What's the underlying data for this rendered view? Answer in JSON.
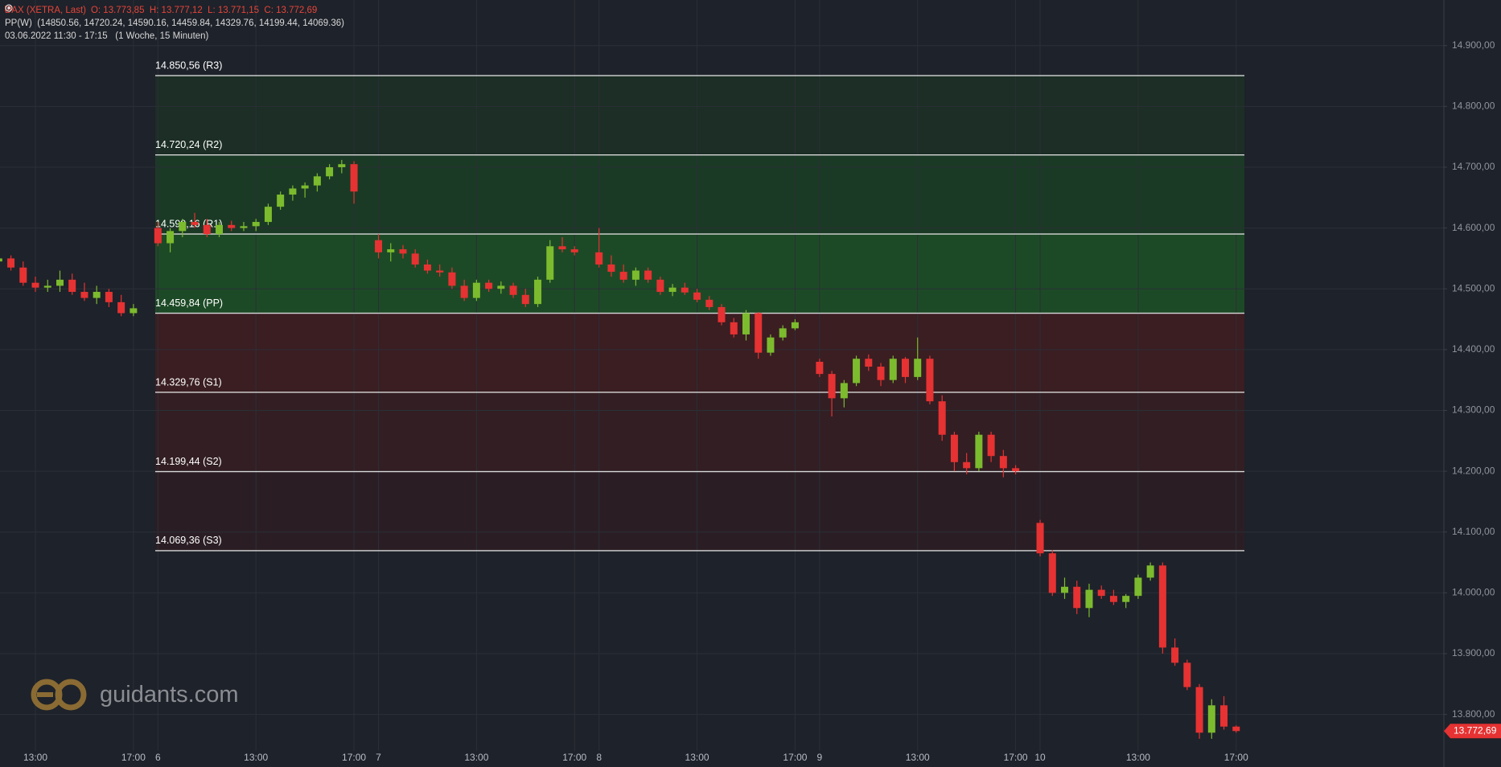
{
  "header": {
    "ohlc": "O: 13.773,85  H: 13.777,12  L: 13.771,15  C: 13.772,69",
    "indicator": "PP(W)  (14850.56, 14720.24, 14590.16, 14459.84, 14329.76, 14199.44, 14069.36)",
    "range": "03.06.2022 11:30 - 17:15   (1 Woche, 15 Minuten)"
  },
  "logo": "guidants.com",
  "chart_data": {
    "type": "candlestick",
    "categories": [
      null,
      null,
      null,
      "13:00",
      null,
      null,
      null,
      null,
      null,
      null,
      null,
      "17:00",
      null,
      "6",
      null,
      null,
      null,
      null,
      null,
      null,
      null,
      "13:00",
      null,
      null,
      null,
      null,
      null,
      null,
      null,
      "17:00",
      null,
      "7",
      null,
      null,
      null,
      null,
      null,
      null,
      null,
      "13:00",
      null,
      null,
      null,
      null,
      null,
      null,
      null,
      "17:00",
      null,
      "8",
      null,
      null,
      null,
      null,
      null,
      null,
      null,
      "13:00",
      null,
      null,
      null,
      null,
      null,
      null,
      null,
      "17:00",
      null,
      "9",
      null,
      null,
      null,
      null,
      null,
      null,
      null,
      "13:00",
      null,
      null,
      null,
      null,
      null,
      null,
      null,
      "17:00",
      null,
      "10",
      null,
      null,
      null,
      null,
      null,
      null,
      null,
      "13:00",
      null,
      null,
      null,
      null,
      null,
      null,
      null,
      "17:00"
    ],
    "series": [
      {
        "name": "DAX (XETRA, Last)",
        "up_color": "#7cbb2e",
        "down_color": "#e63232",
        "open": [
          14545,
          14550,
          14535,
          14510,
          14502,
          14505,
          14515,
          14495,
          14485,
          14495,
          14478,
          14460,
          null,
          14600,
          14575,
          14595,
          14610,
          14605,
          14590,
          14605,
          14600,
          14603,
          14610,
          14635,
          14655,
          14665,
          14670,
          14685,
          14700,
          14705,
          null,
          14580,
          14560,
          14565,
          14558,
          14540,
          14530,
          14527,
          14505,
          14485,
          14510,
          14500,
          14505,
          14490,
          14475,
          14515,
          14570,
          14565,
          null,
          14560,
          14540,
          14528,
          14515,
          14530,
          14515,
          14495,
          14502,
          14494,
          14482,
          14470,
          14445,
          14425,
          14460,
          14395,
          14420,
          14435,
          null,
          14380,
          14360,
          14320,
          14345,
          14385,
          14372,
          14350,
          14385,
          14355,
          14385,
          14315,
          14260,
          14215,
          14205,
          14260,
          14225,
          14205,
          null,
          14115,
          14065,
          14000,
          14010,
          13975,
          14005,
          13995,
          13985,
          13995,
          14025,
          14045,
          13910,
          13885,
          13845,
          13770,
          13815,
          13780
        ],
        "high": [
          14560,
          14555,
          14545,
          14520,
          14515,
          14530,
          14525,
          14510,
          14505,
          14500,
          14490,
          14475,
          null,
          14610,
          14600,
          14615,
          14625,
          14615,
          14610,
          14612,
          14610,
          14615,
          14640,
          14660,
          14670,
          14675,
          14690,
          14705,
          14712,
          14710,
          null,
          14590,
          14575,
          14572,
          14565,
          14548,
          14540,
          14535,
          14515,
          14515,
          14515,
          14512,
          14510,
          14500,
          14520,
          14580,
          14585,
          14570,
          null,
          14600,
          14555,
          14540,
          14535,
          14535,
          14520,
          14508,
          14510,
          14500,
          14488,
          14475,
          14452,
          14465,
          14462,
          14425,
          14440,
          14450,
          null,
          14385,
          14365,
          14350,
          14390,
          14392,
          14378,
          14390,
          14388,
          14420,
          14390,
          14325,
          14265,
          14230,
          14265,
          14265,
          14235,
          14210,
          null,
          14120,
          14070,
          14025,
          14020,
          14015,
          14012,
          14005,
          13998,
          14030,
          14050,
          14050,
          13925,
          13890,
          13850,
          13825,
          13830,
          13782
        ],
        "low": [
          14535,
          14530,
          14505,
          14495,
          14495,
          14495,
          14490,
          14480,
          14475,
          14470,
          14455,
          14455,
          null,
          14570,
          14560,
          14585,
          14600,
          14585,
          14585,
          14595,
          14595,
          14595,
          14605,
          14630,
          14645,
          14650,
          14660,
          14680,
          14690,
          14640,
          null,
          14550,
          14545,
          14550,
          14535,
          14525,
          14520,
          14500,
          14480,
          14480,
          14495,
          14492,
          14485,
          14470,
          14470,
          14510,
          14560,
          14555,
          null,
          14535,
          14520,
          14510,
          14505,
          14510,
          14490,
          14488,
          14490,
          14478,
          14465,
          14440,
          14420,
          14415,
          14385,
          14390,
          14415,
          14432,
          null,
          14355,
          14290,
          14305,
          14340,
          14365,
          14340,
          14345,
          14345,
          14350,
          14310,
          14250,
          14200,
          14195,
          14200,
          14215,
          14190,
          14195,
          null,
          14060,
          13995,
          13990,
          13965,
          13960,
          13990,
          13980,
          13975,
          13990,
          14020,
          13900,
          13880,
          13840,
          13760,
          13760,
          13775,
          13770
        ],
        "close": [
          14550,
          14535,
          14510,
          14502,
          14505,
          14515,
          14495,
          14485,
          14495,
          14478,
          14460,
          14468,
          null,
          14575,
          14595,
          14610,
          14605,
          14590,
          14605,
          14600,
          14603,
          14610,
          14635,
          14655,
          14665,
          14670,
          14685,
          14700,
          14705,
          14660,
          null,
          14560,
          14565,
          14558,
          14540,
          14530,
          14527,
          14505,
          14485,
          14510,
          14500,
          14505,
          14490,
          14475,
          14515,
          14570,
          14565,
          14560,
          null,
          14540,
          14528,
          14515,
          14530,
          14515,
          14495,
          14502,
          14494,
          14482,
          14470,
          14445,
          14425,
          14460,
          14395,
          14420,
          14435,
          14445,
          null,
          14360,
          14320,
          14345,
          14385,
          14372,
          14350,
          14385,
          14355,
          14385,
          14315,
          14260,
          14215,
          14205,
          14260,
          14225,
          14205,
          14200,
          null,
          14065,
          14000,
          14010,
          13975,
          14005,
          13995,
          13985,
          13995,
          14025,
          14045,
          13910,
          13885,
          13845,
          13770,
          13815,
          13780,
          13772.69
        ]
      }
    ],
    "pivots": [
      {
        "value": 14850.56,
        "label": "14.850,56 (R3)"
      },
      {
        "value": 14720.24,
        "label": "14.720,24 (R2)"
      },
      {
        "value": 14590.16,
        "label": "14.590,16 (R1)"
      },
      {
        "value": 14459.84,
        "label": "14.459,84 (PP)"
      },
      {
        "value": 14329.76,
        "label": "14.329,76 (S1)"
      },
      {
        "value": 14199.44,
        "label": "14.199,44 (S2)"
      },
      {
        "value": 14069.36,
        "label": "14.069,36 (S3)"
      }
    ],
    "zone_colors": [
      "#1c2e25",
      "#1a3a25",
      "#1d4a26",
      "#3a1e22",
      "#321e23",
      "#2a1e24"
    ],
    "last_price": {
      "value": 13772.69,
      "label": "13.772,69",
      "color": "#e63232"
    },
    "ylim": [
      13740,
      14975
    ],
    "yticks": [
      {
        "value": 13800,
        "label": "13.800,00"
      },
      {
        "value": 13900,
        "label": "13.900,00"
      },
      {
        "value": 14000,
        "label": "14.000,00"
      },
      {
        "value": 14100,
        "label": "14.100,00"
      },
      {
        "value": 14200,
        "label": "14.200,00"
      },
      {
        "value": 14300,
        "label": "14.300,00"
      },
      {
        "value": 14400,
        "label": "14.400,00"
      },
      {
        "value": 14500,
        "label": "14.500,00"
      },
      {
        "value": 14600,
        "label": "14.600,00"
      },
      {
        "value": 14700,
        "label": "14.700,00"
      },
      {
        "value": 14800,
        "label": "14.800,00"
      },
      {
        "value": 14900,
        "label": "14.900,00"
      }
    ],
    "grid": true
  }
}
